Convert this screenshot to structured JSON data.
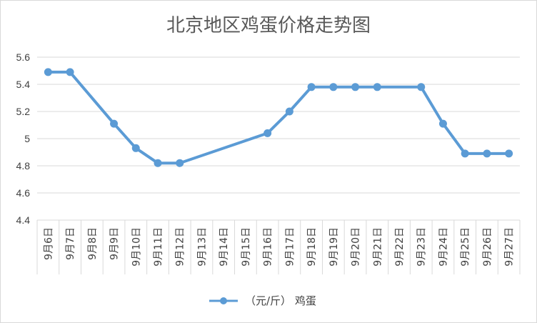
{
  "chart_data": {
    "type": "line",
    "title": "北京地区鸡蛋价格走势图",
    "categories": [
      "9月6日",
      "9月7日",
      "9月8日",
      "9月9日",
      "9月10日",
      "9月11日",
      "9月12日",
      "9月13日",
      "9月14日",
      "9月15日",
      "9月16日",
      "9月17日",
      "9月18日",
      "9月19日",
      "9月20日",
      "9月21日",
      "9月22日",
      "9月23日",
      "9月24日",
      "9月25日",
      "9月26日",
      "9月27日"
    ],
    "series": [
      {
        "name": "（元/斤） 鸡蛋",
        "color": "#5b9bd5",
        "values": [
          5.49,
          5.49,
          null,
          5.11,
          4.93,
          4.82,
          4.82,
          null,
          null,
          null,
          5.04,
          5.2,
          5.38,
          5.38,
          5.38,
          5.38,
          null,
          5.38,
          5.11,
          4.89,
          4.89,
          4.89
        ]
      }
    ],
    "ylim": [
      4.4,
      5.6
    ],
    "yticks": [
      "4.4",
      "4.6",
      "4.8",
      "5",
      "5.2",
      "5.4",
      "5.6"
    ],
    "ytick_values": [
      4.4,
      4.6,
      4.8,
      5.0,
      5.2,
      5.4,
      5.6
    ],
    "xlabel": "",
    "ylabel": "",
    "grid": true,
    "legend_position": "bottom"
  }
}
